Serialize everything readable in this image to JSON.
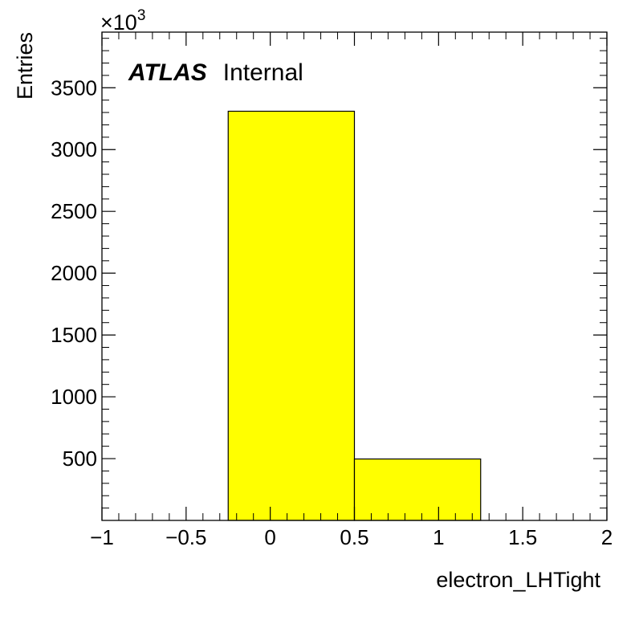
{
  "chart_data": {
    "type": "bar",
    "histogram": true,
    "bins": [
      {
        "low": -0.25,
        "high": 0.5,
        "value": 3310
      },
      {
        "low": 0.5,
        "high": 1.25,
        "value": 497
      }
    ],
    "xlabel": "electron_LHTight",
    "ylabel": "Entries",
    "xlim": [
      -1,
      2
    ],
    "ylim": [
      0,
      3950
    ],
    "y_multiplier": "×10",
    "y_multiplier_exponent": "3",
    "x_ticks": [
      -1,
      -0.5,
      0,
      0.5,
      1,
      1.5,
      2
    ],
    "x_tick_labels": [
      "−1",
      "−0.5",
      "0",
      "0.5",
      "1",
      "1.5",
      "2"
    ],
    "y_ticks": [
      500,
      1000,
      1500,
      2000,
      2500,
      3000,
      3500
    ],
    "y_tick_labels": [
      "500",
      "1000",
      "1500",
      "2000",
      "2500",
      "3000",
      "3500"
    ],
    "fill_color": "#ffff00",
    "edge_color": "#000000",
    "grid": false
  },
  "label": {
    "brand": "ATLAS",
    "status": "Internal"
  }
}
